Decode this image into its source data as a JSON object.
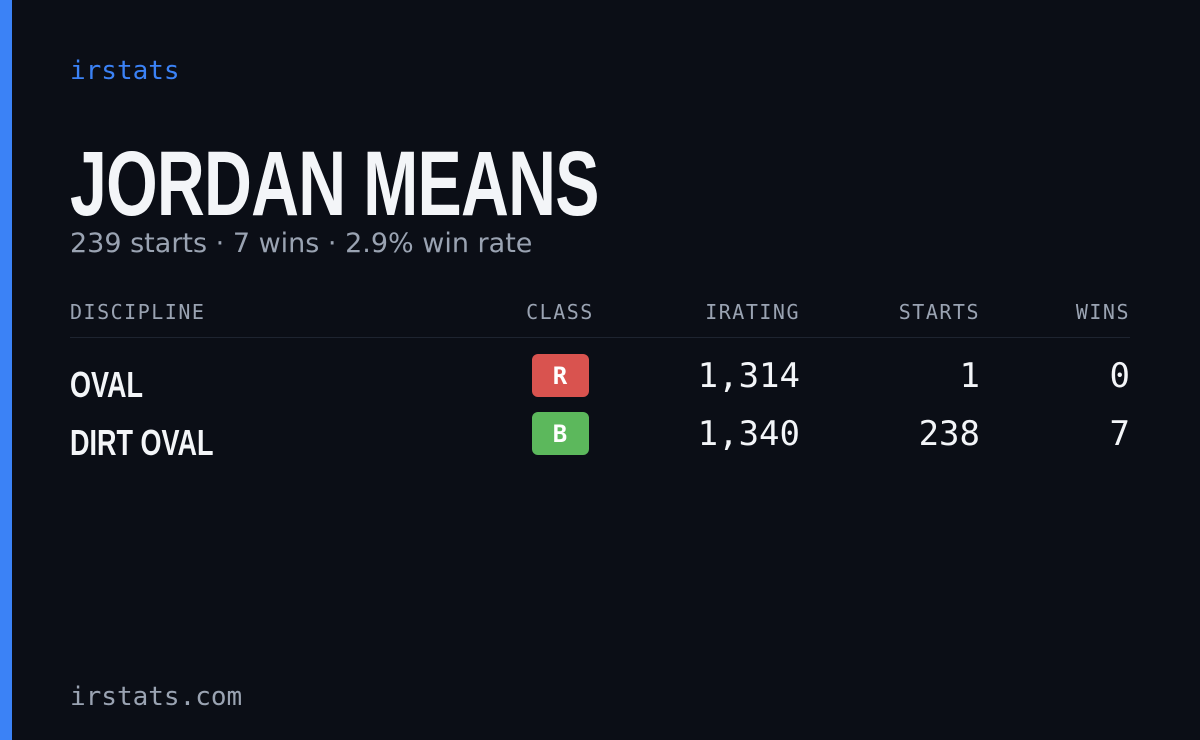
{
  "brand": "irstats",
  "header": {
    "title": "JORDAN MEANS",
    "subtitle": "239 starts · 7 wins · 2.9% win rate"
  },
  "table": {
    "columns": [
      "DISCIPLINE",
      "CLASS",
      "IRATING",
      "STARTS",
      "WINS"
    ],
    "rows": [
      {
        "discipline": "OVAL",
        "class": "R",
        "class_color": "#d9534f",
        "irating": "1,314",
        "starts": "1",
        "wins": "0"
      },
      {
        "discipline": "DIRT OVAL",
        "class": "B",
        "class_color": "#5cb85c",
        "irating": "1,340",
        "starts": "238",
        "wins": "7"
      }
    ]
  },
  "footer": "irstats.com"
}
